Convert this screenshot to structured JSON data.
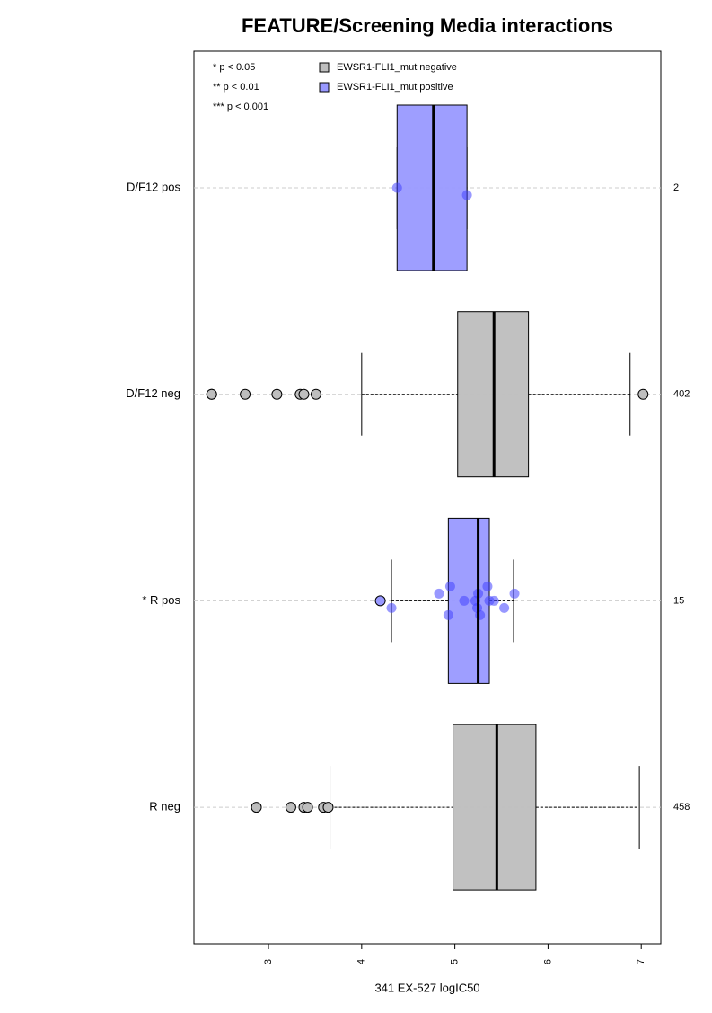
{
  "chart_data": {
    "type": "box",
    "title": "FEATURE/Screening Media interactions",
    "x_label": "341 EX-527 logIC50",
    "categories": [
      "D/F12 pos",
      "D/F12 neg",
      "* R pos",
      "R neg"
    ],
    "counts": [
      2,
      402,
      15,
      458
    ],
    "notes": [
      "* p < 0.05",
      "** p < 0.01",
      "*** p < 0.001"
    ],
    "series": [
      {
        "name": "EWSR1-FLI1_mut negative",
        "color": "#bebebe",
        "stats": [
          null,
          {
            "min": 4.0,
            "q1": 5.03,
            "median": 5.42,
            "q3": 5.79,
            "max": 6.88,
            "outliers": [
              2.39,
              2.39,
              2.75,
              3.09,
              3.34,
              3.38,
              3.51,
              7.02
            ]
          },
          null,
          {
            "min": 3.66,
            "q1": 4.98,
            "median": 5.45,
            "q3": 5.87,
            "max": 6.98,
            "outliers": [
              2.87,
              3.24,
              3.38,
              3.42,
              3.59,
              3.64
            ]
          }
        ]
      },
      {
        "name": "EWSR1-FLI1_mut positive",
        "color": "#9999ff",
        "stats": [
          {
            "min": 4.38,
            "q1": 4.38,
            "median": 4.77,
            "q3": 5.13,
            "max": 5.13,
            "outliers": [],
            "points": [
              4.38,
              5.13
            ]
          },
          null,
          {
            "min": 4.32,
            "q1": 4.93,
            "median": 5.25,
            "q3": 5.37,
            "max": 5.63,
            "outliers": [
              4.2
            ],
            "points": [
              4.2,
              4.32,
              4.83,
              4.93,
              4.95,
              5.1,
              5.22,
              5.24,
              5.25,
              5.27,
              5.35,
              5.37,
              5.42,
              5.53,
              5.64
            ]
          },
          null
        ]
      }
    ],
    "xlim": [
      2.2,
      7.21
    ],
    "xticks": [
      3,
      4,
      5,
      6,
      7
    ],
    "grid": true
  }
}
